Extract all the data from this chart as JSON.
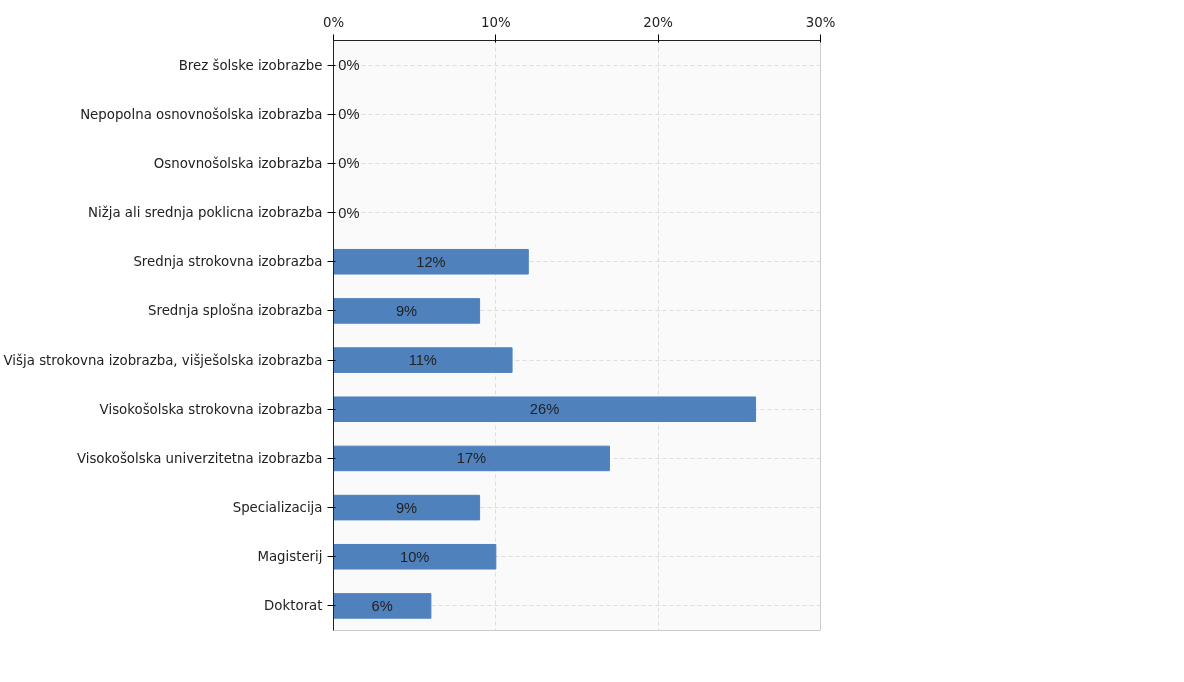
{
  "chart_data": {
    "type": "bar",
    "orientation": "horizontal",
    "categories": [
      "Brez šolske izobrazbe",
      "Nepopolna osnovnošolska izobrazba",
      "Osnovnošolska izobrazba",
      "Nižja ali srednja poklicna izobrazba",
      "Srednja strokovna izobrazba",
      "Srednja splošna izobrazba",
      "Višja strokovna izobrazba, višješolska izobrazba",
      "Visokošolska strokovna izobrazba",
      "Visokošolska univerzitetna izobrazba",
      "Specializacija",
      "Magisterij",
      "Doktorat"
    ],
    "values": [
      0,
      0,
      0,
      0,
      12,
      9,
      11,
      26,
      17,
      9,
      10,
      6
    ],
    "value_labels": [
      "0%",
      "0%",
      "0%",
      "0%",
      "12%",
      "9%",
      "11%",
      "26%",
      "17%",
      "9%",
      "10%",
      "6%"
    ],
    "color": "#4f81bd",
    "xlim": [
      0,
      30
    ],
    "xticks": [
      {
        "value": 0,
        "label": "0%"
      },
      {
        "value": 10,
        "label": "10%"
      },
      {
        "value": 20,
        "label": "20%"
      },
      {
        "value": 30,
        "label": "30%"
      }
    ],
    "grid": true
  }
}
